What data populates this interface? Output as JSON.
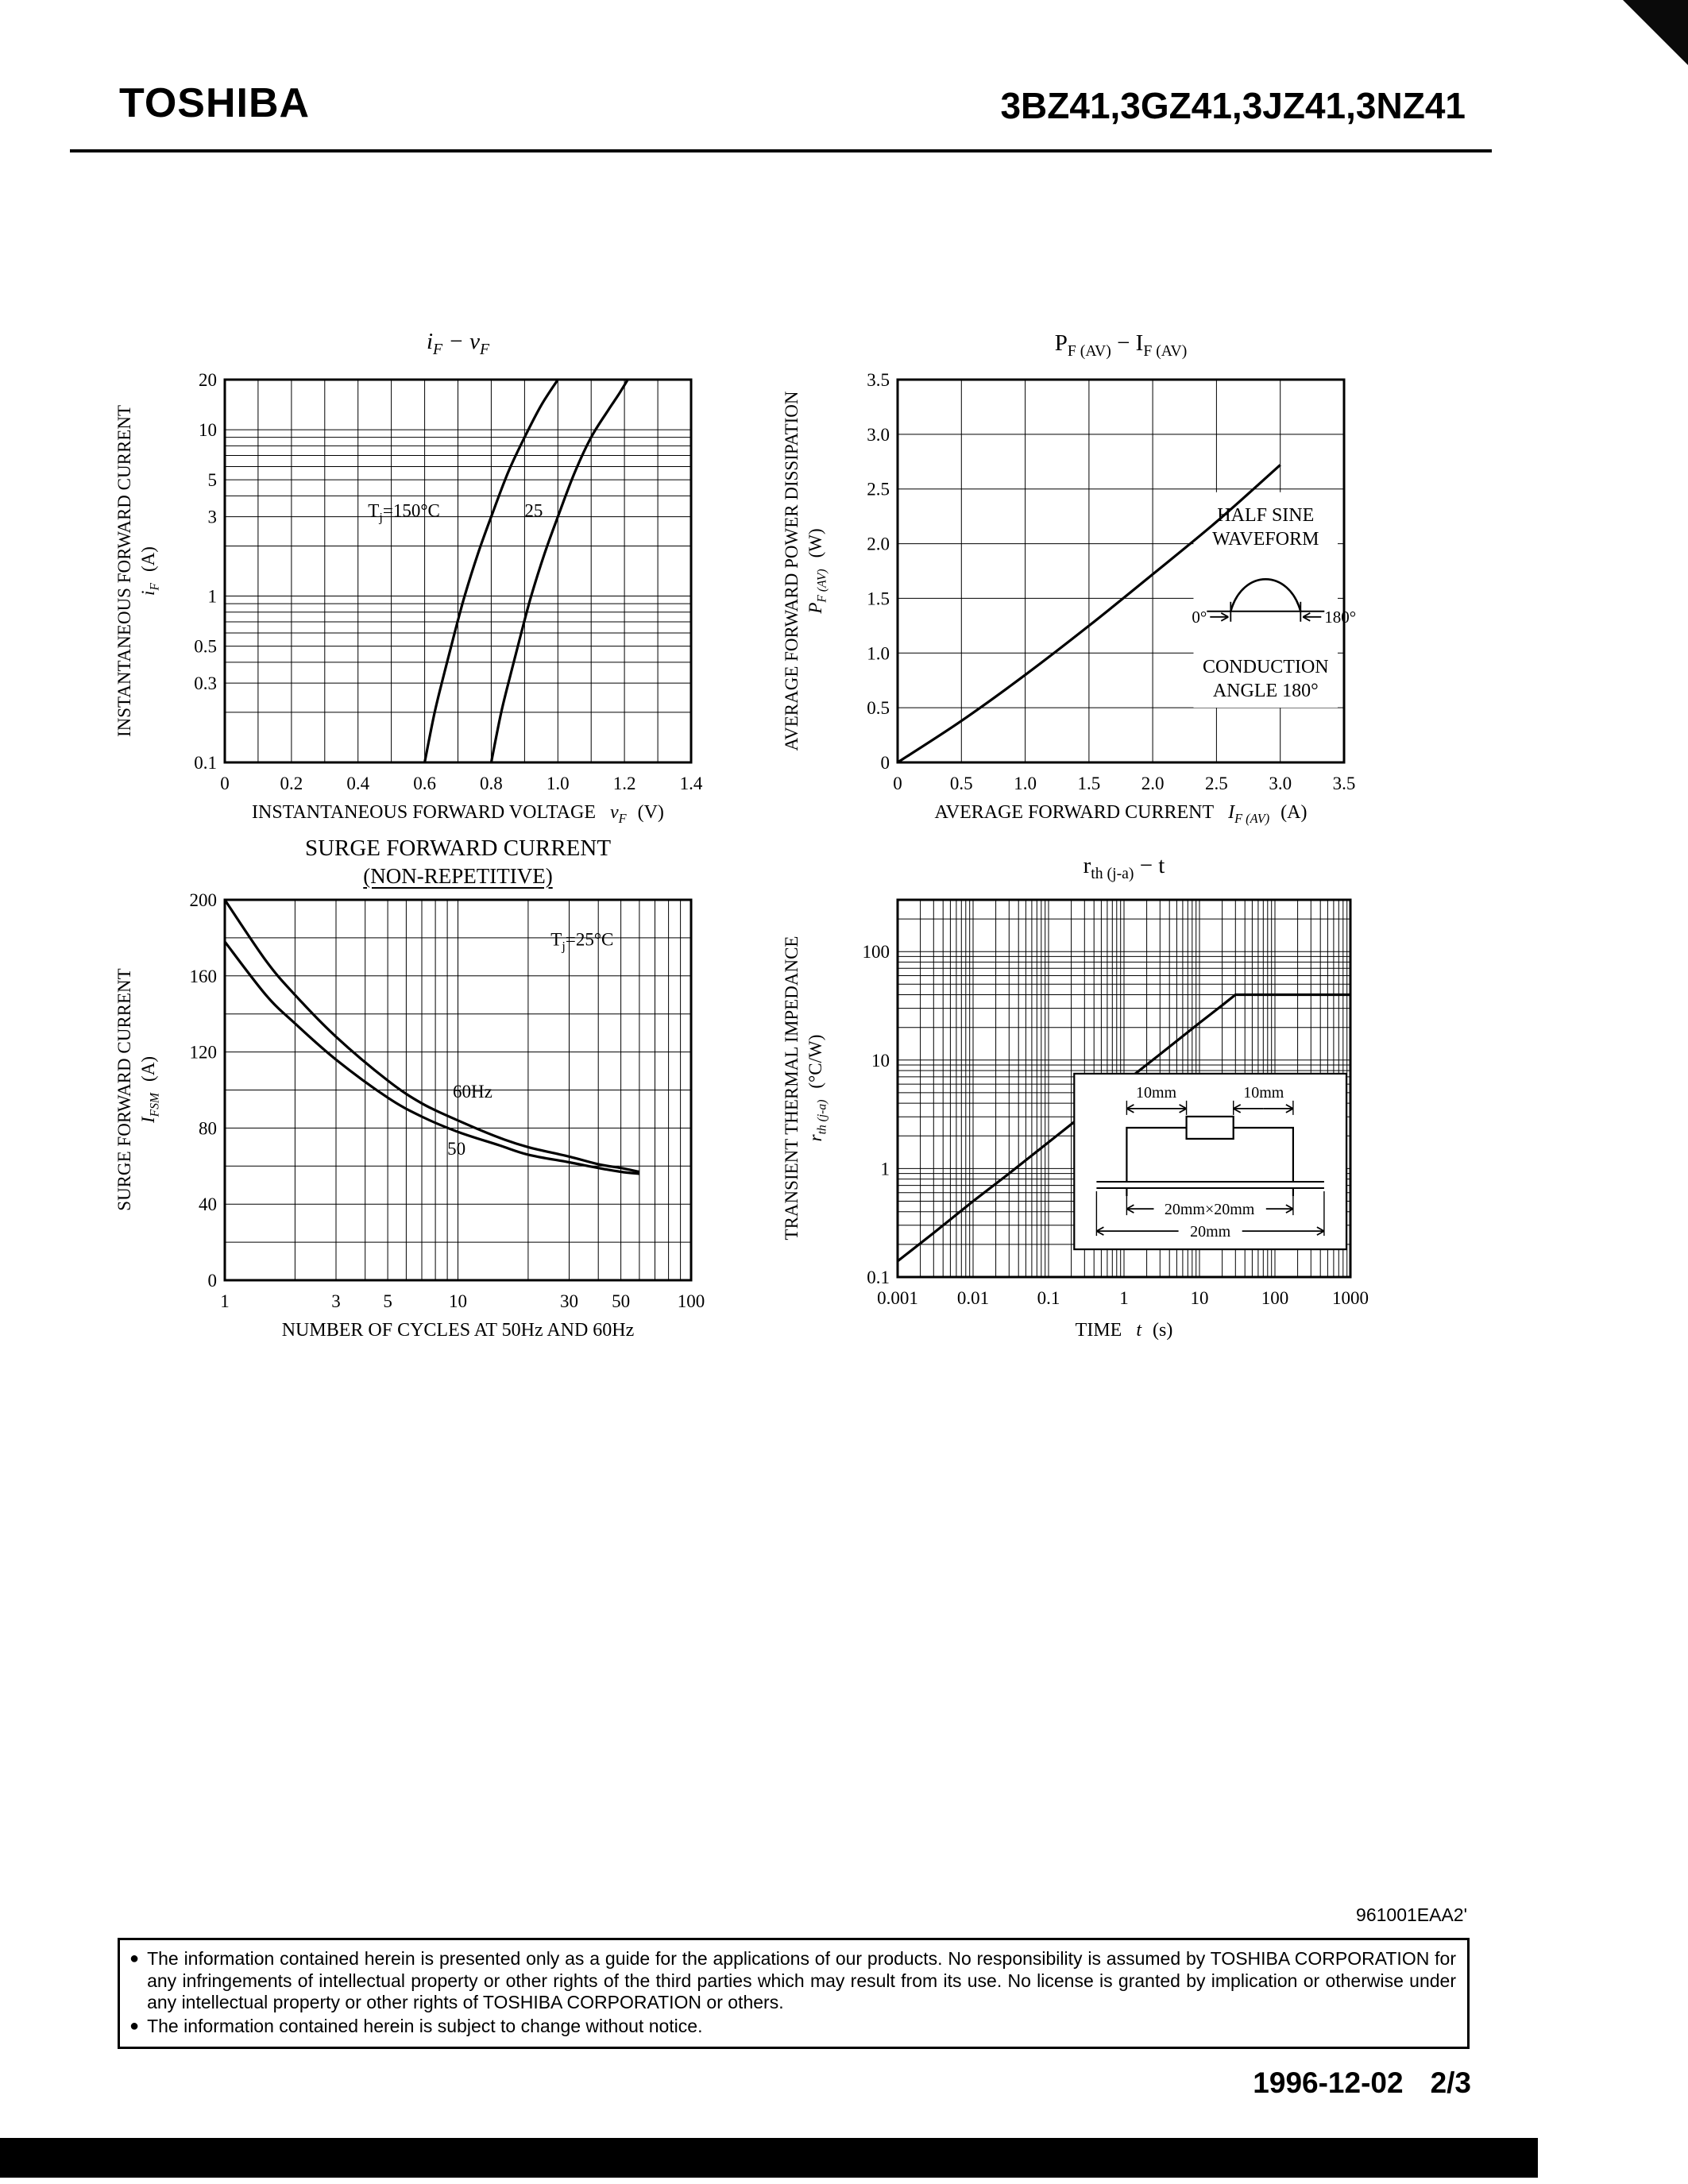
{
  "page": {
    "brand": "TOSHIBA",
    "part_numbers": "3BZ41,3GZ41,3JZ41,3NZ41",
    "doc_code": "961001EAA2'",
    "date": "1996-12-02",
    "page_num": "2/3",
    "bullet": "●",
    "disclaimer": [
      "The information contained herein is presented only as a guide for the applications of our products. No responsibility is assumed by TOSHIBA CORPORATION for any infringements of intellectual property or other rights of the third parties which may result from its use. No license is granted by implication or otherwise under any intellectual property or other rights of TOSHIBA CORPORATION or others.",
      "The information contained herein is subject to change without notice."
    ]
  },
  "chart_data": [
    {
      "id": "if_vf",
      "type": "line",
      "title": "i_{F} − v_{F}",
      "x": {
        "scale": "linear",
        "min": 0,
        "max": 1.4,
        "grid_step": 0.1,
        "title": "INSTANTANEOUS FORWARD VOLTAGE",
        "symbol": "v_{F}",
        "unit": "(V)",
        "ticks": [
          {
            "v": 0,
            "l": "0"
          },
          {
            "v": 0.2,
            "l": "0.2"
          },
          {
            "v": 0.4,
            "l": "0.4"
          },
          {
            "v": 0.6,
            "l": "0.6"
          },
          {
            "v": 0.8,
            "l": "0.8"
          },
          {
            "v": 1.0,
            "l": "1.0"
          },
          {
            "v": 1.2,
            "l": "1.2"
          },
          {
            "v": 1.4,
            "l": "1.4"
          }
        ]
      },
      "y": {
        "scale": "log",
        "min": 0.1,
        "max": 20,
        "title": "INSTANTANEOUS FORWARD CURRENT",
        "symbol": "i_{F}",
        "unit": "(A)",
        "ticks": [
          {
            "v": 20,
            "l": "20"
          },
          {
            "v": 10,
            "l": "10"
          },
          {
            "v": 5,
            "l": "5"
          },
          {
            "v": 3,
            "l": "3"
          },
          {
            "v": 1,
            "l": "1"
          },
          {
            "v": 0.5,
            "l": "0.5"
          },
          {
            "v": 0.3,
            "l": "0.3"
          },
          {
            "v": 0.1,
            "l": "0.1"
          }
        ]
      },
      "series": [
        {
          "name": "Tj=150C",
          "points": [
            [
              0.6,
              0.1
            ],
            [
              0.63,
              0.2
            ],
            [
              0.66,
              0.35
            ],
            [
              0.69,
              0.6
            ],
            [
              0.72,
              1.0
            ],
            [
              0.76,
              1.8
            ],
            [
              0.8,
              3.0
            ],
            [
              0.85,
              5.5
            ],
            [
              0.9,
              9.0
            ],
            [
              0.95,
              14
            ],
            [
              1.0,
              20
            ]
          ]
        },
        {
          "name": "Tj=25C",
          "points": [
            [
              0.8,
              0.1
            ],
            [
              0.83,
              0.2
            ],
            [
              0.86,
              0.35
            ],
            [
              0.89,
              0.6
            ],
            [
              0.92,
              1.0
            ],
            [
              0.96,
              1.8
            ],
            [
              1.0,
              3.0
            ],
            [
              1.05,
              5.5
            ],
            [
              1.1,
              9.0
            ],
            [
              1.15,
              13
            ],
            [
              1.18,
              16
            ],
            [
              1.21,
              20
            ]
          ]
        }
      ],
      "labels": [
        {
          "t": "T_{j}=150°C",
          "x": 0.43,
          "y": 3.0
        },
        {
          "t": "25",
          "x": 0.9,
          "y": 3.0
        }
      ]
    },
    {
      "id": "pf_if",
      "type": "line",
      "title": "P_{F (AV)} − I_{F (AV)}",
      "x": {
        "scale": "linear",
        "min": 0,
        "max": 3.5,
        "grid_step": 0.5,
        "title": "AVERAGE FORWARD CURRENT",
        "symbol": "I_{F (AV)}",
        "unit": "(A)",
        "ticks": [
          {
            "v": 0,
            "l": "0"
          },
          {
            "v": 0.5,
            "l": "0.5"
          },
          {
            "v": 1,
            "l": "1.0"
          },
          {
            "v": 1.5,
            "l": "1.5"
          },
          {
            "v": 2,
            "l": "2.0"
          },
          {
            "v": 2.5,
            "l": "2.5"
          },
          {
            "v": 3,
            "l": "3.0"
          },
          {
            "v": 3.5,
            "l": "3.5"
          }
        ]
      },
      "y": {
        "scale": "linear",
        "min": 0,
        "max": 3.5,
        "grid_step": 0.5,
        "title": "AVERAGE FORWARD POWER DISSIPATION",
        "symbol": "P_{F (AV)}",
        "unit": "(W)",
        "ticks": [
          {
            "v": 0,
            "l": "0"
          },
          {
            "v": 0.5,
            "l": "0.5"
          },
          {
            "v": 1,
            "l": "1.0"
          },
          {
            "v": 1.5,
            "l": "1.5"
          },
          {
            "v": 2,
            "l": "2.0"
          },
          {
            "v": 2.5,
            "l": "2.5"
          },
          {
            "v": 3,
            "l": "3.0"
          },
          {
            "v": 3.5,
            "l": "3.5"
          }
        ]
      },
      "series": [
        {
          "name": "PF(AV)",
          "points": [
            [
              0,
              0
            ],
            [
              0.5,
              0.38
            ],
            [
              1.0,
              0.8
            ],
            [
              1.5,
              1.25
            ],
            [
              2.0,
              1.72
            ],
            [
              2.5,
              2.2
            ],
            [
              3.0,
              2.72
            ]
          ]
        }
      ],
      "inset": {
        "line1": "HALF SINE",
        "line2": "WAVEFORM",
        "deg0": "0°",
        "deg180": "180°",
        "line3": "CONDUCTION",
        "line4": "ANGLE 180°"
      }
    },
    {
      "id": "surge",
      "type": "line",
      "title": "SURGE FORWARD CURRENT",
      "subtitle": "(NON-REPETITIVE)",
      "x": {
        "scale": "log",
        "min": 1,
        "max": 100,
        "title": "NUMBER OF CYCLES AT 50Hz AND 60Hz",
        "symbol": "",
        "unit": "",
        "ticks": [
          {
            "v": 1,
            "l": "1"
          },
          {
            "v": 3,
            "l": "3"
          },
          {
            "v": 5,
            "l": "5"
          },
          {
            "v": 10,
            "l": "10"
          },
          {
            "v": 30,
            "l": "30"
          },
          {
            "v": 50,
            "l": "50"
          },
          {
            "v": 100,
            "l": "100"
          }
        ]
      },
      "y": {
        "scale": "linear",
        "min": 0,
        "max": 200,
        "grid_step": 20,
        "title": "SURGE FORWARD CURRENT",
        "symbol": "I_{FSM}",
        "unit": "(A)",
        "ticks": [
          {
            "v": 0,
            "l": "0"
          },
          {
            "v": 40,
            "l": "40"
          },
          {
            "v": 80,
            "l": "80"
          },
          {
            "v": 120,
            "l": "120"
          },
          {
            "v": 160,
            "l": "160"
          },
          {
            "v": 200,
            "l": "200"
          }
        ]
      },
      "series": [
        {
          "name": "60Hz",
          "points": [
            [
              1,
              200
            ],
            [
              1.5,
              168
            ],
            [
              2,
              150
            ],
            [
              3,
              128
            ],
            [
              5,
              105
            ],
            [
              7,
              93
            ],
            [
              10,
              84
            ],
            [
              15,
              75
            ],
            [
              20,
              70
            ],
            [
              30,
              65
            ],
            [
              40,
              61
            ],
            [
              50,
              59
            ],
            [
              60,
              57
            ]
          ]
        },
        {
          "name": "50Hz",
          "points": [
            [
              1,
              178
            ],
            [
              1.5,
              150
            ],
            [
              2,
              135
            ],
            [
              3,
              116
            ],
            [
              5,
              96
            ],
            [
              7,
              86
            ],
            [
              10,
              78
            ],
            [
              15,
              71
            ],
            [
              20,
              66
            ],
            [
              30,
              62
            ],
            [
              40,
              59
            ],
            [
              50,
              57
            ],
            [
              60,
              56
            ]
          ]
        }
      ],
      "labels": [
        {
          "t": "60Hz",
          "x": 9.5,
          "y": 96
        },
        {
          "t": "50",
          "x": 9,
          "y": 66
        }
      ],
      "note": {
        "t": "T_{j}=25°C",
        "x": 25,
        "y": 176
      }
    },
    {
      "id": "rth",
      "type": "line",
      "title": "r_{th (j-a)} − t",
      "x": {
        "scale": "log",
        "min": 0.001,
        "max": 1000,
        "title": "TIME",
        "symbol": "t",
        "unit": "(s)",
        "ticks": [
          {
            "v": 0.001,
            "l": "0.001"
          },
          {
            "v": 0.01,
            "l": "0.01"
          },
          {
            "v": 0.1,
            "l": "0.1"
          },
          {
            "v": 1,
            "l": "1"
          },
          {
            "v": 10,
            "l": "10"
          },
          {
            "v": 100,
            "l": "100"
          },
          {
            "v": 1000,
            "l": "1000"
          }
        ]
      },
      "y": {
        "scale": "log",
        "min": 0.1,
        "max": 300,
        "title": "TRANSIENT THERMAL IMPEDANCE",
        "symbol": "r_{th (j-a)}",
        "unit": "(°C/W)",
        "ticks": [
          {
            "v": 100,
            "l": "100"
          },
          {
            "v": 10,
            "l": "10"
          },
          {
            "v": 1,
            "l": "1"
          },
          {
            "v": 0.1,
            "l": "0.1"
          }
        ]
      },
      "series": [
        {
          "name": "rth",
          "points": [
            [
              0.001,
              0.14
            ],
            [
              0.003,
              0.255
            ],
            [
              0.01,
              0.5
            ],
            [
              0.03,
              0.9
            ],
            [
              0.1,
              1.75
            ],
            [
              0.3,
              3.2
            ],
            [
              1,
              6.2
            ],
            [
              3,
              11.3
            ],
            [
              10,
              22
            ],
            [
              20,
              32
            ],
            [
              30,
              40
            ],
            [
              100,
              40
            ],
            [
              1000,
              40
            ]
          ]
        }
      ],
      "inset": {
        "dim_left": "10mm",
        "dim_right": "10mm",
        "board": "20mm×20mm",
        "width_label": "20mm"
      }
    }
  ]
}
